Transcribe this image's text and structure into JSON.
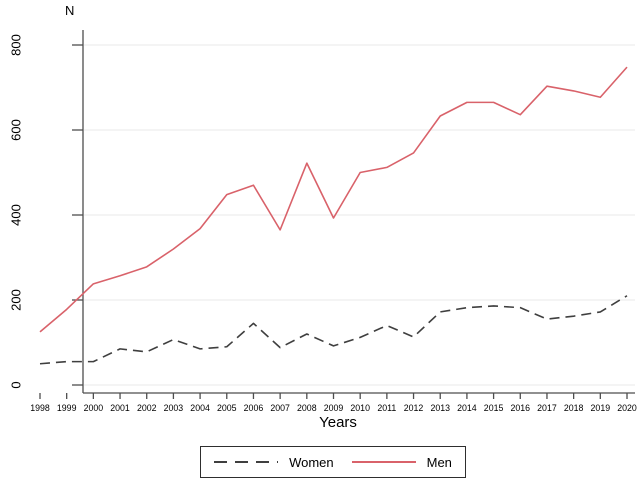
{
  "chart_data": {
    "type": "line",
    "title": "",
    "ylabel": "N",
    "xlabel": "Years",
    "x": [
      1998,
      1999,
      2000,
      2001,
      2002,
      2003,
      2004,
      2005,
      2006,
      2007,
      2008,
      2009,
      2010,
      2011,
      2012,
      2013,
      2014,
      2015,
      2016,
      2017,
      2018,
      2019,
      2020
    ],
    "series": [
      {
        "name": "Women",
        "style": "dashed",
        "color": "#3f3f3f",
        "values": [
          50,
          55,
          55,
          85,
          78,
          107,
          85,
          90,
          145,
          88,
          120,
          92,
          112,
          140,
          113,
          172,
          182,
          186,
          182,
          155,
          162,
          172,
          210
        ]
      },
      {
        "name": "Men",
        "style": "solid",
        "color": "#d9626a",
        "values": [
          125,
          178,
          238,
          257,
          278,
          320,
          368,
          448,
          470,
          365,
          522,
          393,
          500,
          512,
          546,
          633,
          665,
          665,
          636,
          703,
          692,
          677,
          748
        ]
      }
    ],
    "ylim": [
      0,
      800
    ],
    "yticks": [
      0,
      200,
      400,
      600,
      800
    ],
    "grid": true,
    "legend_position": "bottom-center",
    "colors": {
      "grid": "#eaeaea",
      "axis": "#4d4d4d",
      "tick_text": "#000000",
      "legend_border": "#2e2e2e"
    }
  }
}
